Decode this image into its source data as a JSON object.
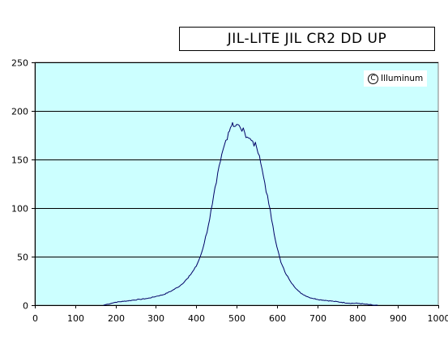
{
  "chart_data": {
    "type": "line",
    "title": "JIL-LITE JIL CR2 DD UP",
    "xlabel": "",
    "ylabel": "",
    "xlim": [
      0,
      1000
    ],
    "ylim": [
      0,
      250
    ],
    "x_ticks": [
      "0",
      "100",
      "200",
      "300",
      "400",
      "500",
      "600",
      "700",
      "800",
      "900",
      "1000"
    ],
    "y_ticks": [
      "0",
      "50",
      "100",
      "150",
      "200",
      "250"
    ],
    "grid": "horizontal",
    "legend": "none",
    "series": [
      {
        "color": "#000066",
        "x": [
          170,
          180,
          190,
          200,
          220,
          240,
          260,
          280,
          300,
          320,
          340,
          360,
          380,
          400,
          410,
          420,
          430,
          440,
          450,
          460,
          470,
          480,
          485,
          490,
          495,
          500,
          510,
          520,
          530,
          540,
          550,
          560,
          570,
          580,
          590,
          600,
          610,
          620,
          630,
          640,
          650,
          660,
          680,
          700,
          720,
          740,
          760,
          780,
          800,
          820,
          840,
          850
        ],
        "y": [
          0,
          1,
          2,
          3,
          4,
          5,
          6,
          7,
          9,
          11,
          15,
          20,
          28,
          40,
          50,
          64,
          82,
          104,
          126,
          148,
          165,
          178,
          183,
          188,
          184,
          186,
          182,
          178,
          172,
          169,
          162,
          146,
          126,
          104,
          82,
          60,
          44,
          34,
          27,
          21,
          16,
          12,
          8,
          6,
          5,
          4,
          3,
          2,
          2,
          1,
          0,
          0
        ]
      }
    ]
  },
  "watermark": {
    "symbol": "C",
    "text": "Illuminum"
  },
  "colors": {
    "plot_background": "#ccffff",
    "gridline": "#000000",
    "series": "#000066"
  }
}
